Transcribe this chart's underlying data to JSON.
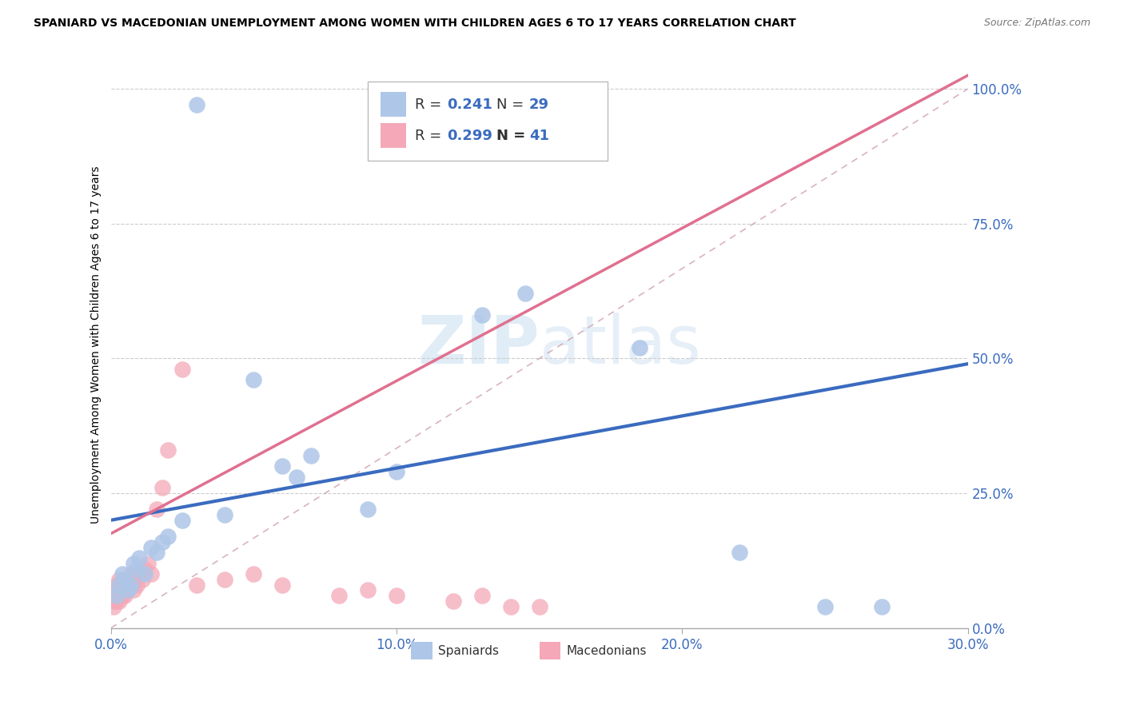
{
  "title": "SPANIARD VS MACEDONIAN UNEMPLOYMENT AMONG WOMEN WITH CHILDREN AGES 6 TO 17 YEARS CORRELATION CHART",
  "source": "Source: ZipAtlas.com",
  "xlabel_ticks": [
    "0.0%",
    "10.0%",
    "20.0%",
    "30.0%"
  ],
  "ylabel_ticks": [
    "0.0%",
    "25.0%",
    "50.0%",
    "75.0%",
    "100.0%"
  ],
  "xlim": [
    0.0,
    0.3
  ],
  "ylim": [
    0.0,
    1.05
  ],
  "ylabel": "Unemployment Among Women with Children Ages 6 to 17 years",
  "spaniard_R": 0.241,
  "spaniard_N": 29,
  "macedonian_R": 0.299,
  "macedonian_N": 41,
  "spaniard_color": "#aec6e8",
  "macedonian_color": "#f4a8b8",
  "spaniard_line_color": "#3a6bbf",
  "macedonian_line_color": "#e07090",
  "title_fontsize": 10.5,
  "watermark_text": "ZIPatlas",
  "spaniard_x": [
    0.002,
    0.003,
    0.004,
    0.005,
    0.006,
    0.007,
    0.008,
    0.009,
    0.01,
    0.012,
    0.014,
    0.016,
    0.018,
    0.02,
    0.025,
    0.03,
    0.04,
    0.05,
    0.06,
    0.065,
    0.07,
    0.09,
    0.1,
    0.13,
    0.145,
    0.185,
    0.22,
    0.25,
    0.27
  ],
  "spaniard_y": [
    0.06,
    0.08,
    0.1,
    0.09,
    0.07,
    0.08,
    0.12,
    0.11,
    0.13,
    0.1,
    0.15,
    0.14,
    0.16,
    0.17,
    0.2,
    0.97,
    0.21,
    0.46,
    0.3,
    0.28,
    0.32,
    0.22,
    0.29,
    0.58,
    0.62,
    0.52,
    0.14,
    0.04,
    0.04
  ],
  "macedonian_x": [
    0.001,
    0.001,
    0.001,
    0.001,
    0.002,
    0.002,
    0.002,
    0.003,
    0.003,
    0.003,
    0.004,
    0.004,
    0.005,
    0.005,
    0.006,
    0.006,
    0.007,
    0.007,
    0.008,
    0.008,
    0.009,
    0.01,
    0.011,
    0.012,
    0.013,
    0.014,
    0.016,
    0.018,
    0.02,
    0.025,
    0.03,
    0.04,
    0.05,
    0.06,
    0.08,
    0.09,
    0.1,
    0.12,
    0.13,
    0.14,
    0.15
  ],
  "macedonian_y": [
    0.04,
    0.05,
    0.06,
    0.07,
    0.05,
    0.06,
    0.08,
    0.05,
    0.07,
    0.09,
    0.06,
    0.08,
    0.06,
    0.08,
    0.07,
    0.09,
    0.08,
    0.1,
    0.07,
    0.09,
    0.08,
    0.1,
    0.09,
    0.11,
    0.12,
    0.1,
    0.22,
    0.26,
    0.33,
    0.48,
    0.08,
    0.09,
    0.1,
    0.08,
    0.06,
    0.07,
    0.06,
    0.05,
    0.06,
    0.04,
    0.04
  ],
  "spaniard_line_x0": 0.0,
  "spaniard_line_y0": 0.2,
  "spaniard_line_x1": 0.3,
  "spaniard_line_y1": 0.49,
  "macedonian_line_x0": 0.0,
  "macedonian_line_y0": 0.175,
  "macedonian_line_x1": 0.05,
  "macedonian_line_y1": 0.26
}
